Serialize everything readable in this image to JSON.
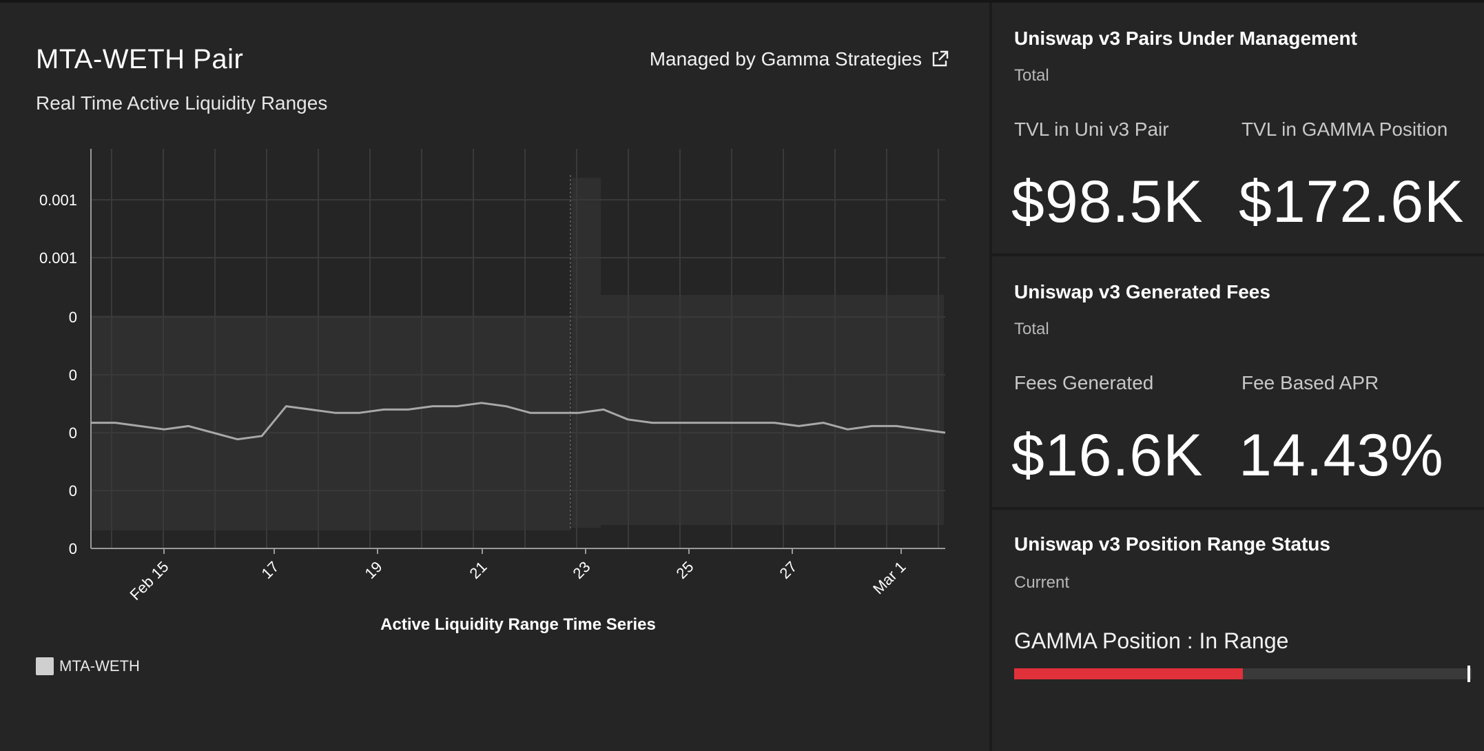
{
  "pair": {
    "title": "MTA-WETH Pair",
    "subtitle": "Real Time Active Liquidity Ranges",
    "managed_by": "Managed by Gamma Strategies",
    "managed_icon": "external-link-icon"
  },
  "chart_data": {
    "type": "area",
    "xlabel": "Active Liquidity Range Time Series",
    "x_ticks": [
      "Feb 15",
      "17",
      "19",
      "21",
      "23",
      "25",
      "27",
      "Mar 1"
    ],
    "y_ticks": [
      "0",
      "0",
      "0",
      "0",
      "0",
      "0.001",
      "0.001"
    ],
    "legend": "MTA-WETH",
    "legend_color": "#cfcfcf",
    "grid": true,
    "x_range": [
      "Feb 13",
      "Mar 2"
    ],
    "series": [
      {
        "name": "MTA-WETH",
        "type": "line",
        "values": [
          0.38,
          0.38,
          0.37,
          0.36,
          0.37,
          0.35,
          0.33,
          0.34,
          0.43,
          0.42,
          0.41,
          0.41,
          0.42,
          0.42,
          0.43,
          0.43,
          0.44,
          0.43,
          0.41,
          0.41,
          0.41,
          0.42,
          0.39,
          0.38,
          0.38,
          0.38,
          0.38,
          0.38,
          0.38,
          0.37,
          0.38,
          0.36,
          0.37,
          0.37,
          0.36,
          0.35
        ]
      }
    ]
  },
  "fees_tvl": {
    "title": "Uniswap v3 Pairs Under Management",
    "sub": "Total",
    "tvl_pair_label": "TVL in Uni v3 Pair",
    "tvl_pair_value": "$98.5K",
    "tvl_gamma_label": "TVL in GAMMA Position",
    "tvl_gamma_value": "$172.6K"
  },
  "fees": {
    "title": "Uniswap v3 Generated Fees",
    "sub": "Total",
    "fees_label": "Fees Generated",
    "fees_value": "$16.6K",
    "apr_label": "Fee Based APR",
    "apr_value": "14.43%"
  },
  "range": {
    "title": "Uniswap v3 Position Range Status",
    "sub": "Current",
    "status": "GAMMA Position : In Range",
    "fill_fraction": 0.5,
    "fill_color": "#e0313a"
  }
}
